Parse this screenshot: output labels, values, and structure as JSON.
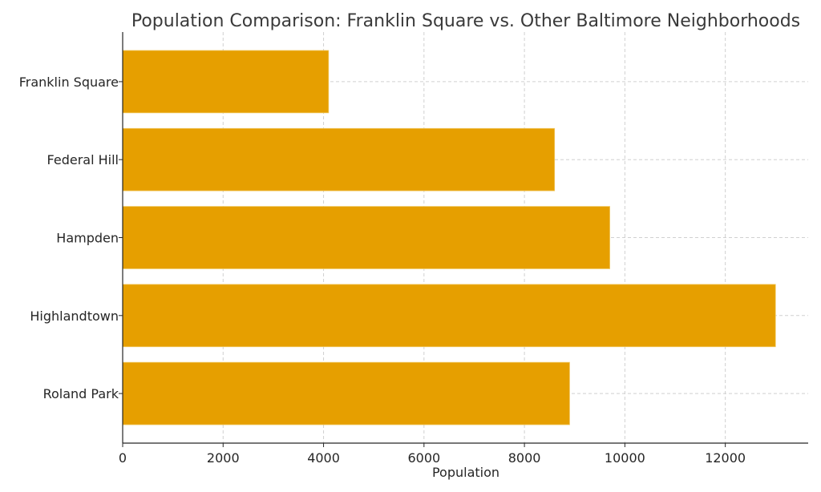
{
  "chart_data": {
    "type": "bar",
    "orientation": "horizontal",
    "title": "Population Comparison: Franklin Square vs. Other Baltimore Neighborhoods",
    "xlabel": "Population",
    "ylabel": "",
    "categories": [
      "Franklin Square",
      "Federal Hill",
      "Hampden",
      "Highlandtown",
      "Roland Park"
    ],
    "values": [
      4100,
      8600,
      9700,
      13000,
      8900
    ],
    "xlim": [
      0,
      13650
    ],
    "xticks": [
      0,
      2000,
      4000,
      6000,
      8000,
      10000,
      12000
    ],
    "xtick_labels": [
      "0",
      "2000",
      "4000",
      "6000",
      "8000",
      "10000",
      "12000"
    ],
    "grid": true,
    "bar_color": "#e69f00"
  }
}
